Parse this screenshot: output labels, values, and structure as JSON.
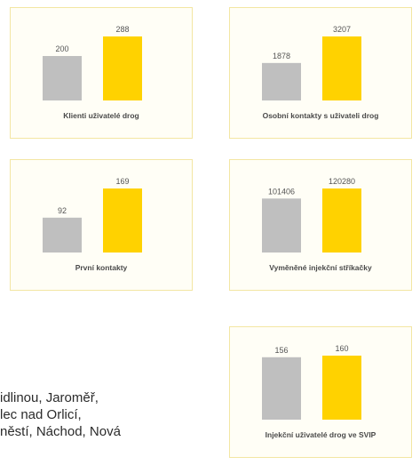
{
  "colors": {
    "bar_a": "#bfbfbf",
    "bar_b": "#ffd200",
    "card_border": "#f3e6a3"
  },
  "chart_data": [
    {
      "type": "bar",
      "categories": [
        "",
        ""
      ],
      "values": [
        200,
        288
      ],
      "xlabel": "Klienti uživatelé drog"
    },
    {
      "type": "bar",
      "categories": [
        "",
        ""
      ],
      "values": [
        1878,
        3207
      ],
      "xlabel": "Osobní kontakty s uživateli drog"
    },
    {
      "type": "bar",
      "categories": [
        "",
        ""
      ],
      "values": [
        92,
        169
      ],
      "xlabel": "První kontakty"
    },
    {
      "type": "bar",
      "categories": [
        "",
        ""
      ],
      "values": [
        101406,
        120280
      ],
      "xlabel": "Vyměněné injekční stříkačky"
    },
    {
      "type": "bar",
      "categories": [
        "",
        ""
      ],
      "values": [
        156,
        160
      ],
      "xlabel": "Injekční uživatelé drog ve SVIP"
    }
  ],
  "value_labels": [
    [
      "200",
      "288"
    ],
    [
      "1878",
      "3207"
    ],
    [
      "92",
      "169"
    ],
    [
      "101406",
      "120280"
    ],
    [
      "156",
      "160"
    ]
  ],
  "body_text": [
    "idlinou, Jaroměř,",
    "lec nad Orlicí,",
    "něstí, Náchod, Nová",
    ""
  ]
}
